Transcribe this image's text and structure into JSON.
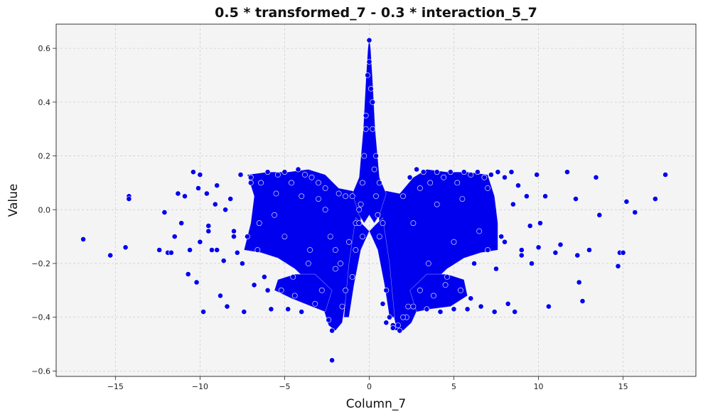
{
  "chart_data": {
    "type": "scatter",
    "title": "0.5 * transformed_7 - 0.3 * interaction_5_7",
    "xlabel": "Column_7",
    "ylabel": "Value",
    "xlim": [
      -18.5,
      19.3
    ],
    "ylim": [
      -0.62,
      0.69
    ],
    "xticks": [
      -15,
      -10,
      -5,
      0,
      5,
      10,
      15
    ],
    "yticks": [
      -0.6,
      -0.4,
      -0.2,
      0.0,
      0.2,
      0.4,
      0.6
    ],
    "xtick_labels": [
      "−15",
      "−10",
      "−5",
      "0",
      "5",
      "10",
      "15"
    ],
    "ytick_labels": [
      "−0.6",
      "−0.4",
      "−0.2",
      "0.0",
      "0.2",
      "0.4",
      "0.6"
    ],
    "grid": true,
    "background_color": "#f4f4f4",
    "marker_color": "#0000ee",
    "marker_edge_color": "#ffffff",
    "series": [
      {
        "x": [
          -16.9,
          -15.3,
          -14.4,
          -14.2,
          -14.2,
          -12.4,
          -12.1,
          -11.9,
          -11.7,
          -11.5,
          -11.3,
          -11.1,
          -10.9,
          -10.7,
          -10.6,
          -10.4,
          -10.2,
          -10.1,
          -10.0,
          -9.8,
          -9.6,
          -9.5,
          -9.3,
          -9.1,
          -9.0,
          -8.8,
          -8.6,
          -8.4,
          -8.2,
          -8.0,
          -7.8,
          -7.6,
          -7.4,
          -7.2,
          -7.0,
          -6.8,
          -6.6,
          -6.4,
          -6.2,
          -6.0,
          -5.8,
          -5.6,
          -5.4,
          -5.2,
          -5.0,
          -4.8,
          -4.6,
          -4.4,
          -4.2,
          -4.0,
          -3.8,
          -3.6,
          -3.4,
          -3.2,
          -3.0,
          -2.8,
          -2.6,
          -2.4,
          -2.2,
          -2.0,
          -1.8,
          -1.6,
          -1.4,
          -1.2,
          -1.0,
          -0.8,
          -0.6,
          -0.4,
          -0.2,
          0.0,
          0.2,
          0.4,
          0.6,
          0.8,
          1.0,
          1.2,
          1.4,
          1.6,
          1.8,
          2.0,
          2.2,
          2.4,
          2.6,
          2.8,
          3.0,
          3.2,
          3.4,
          3.6,
          3.8,
          4.0,
          4.2,
          4.4,
          4.6,
          4.8,
          5.0,
          5.2,
          5.4,
          5.6,
          5.8,
          6.0,
          6.2,
          6.4,
          6.6,
          6.8,
          7.0,
          7.2,
          7.4,
          7.6,
          7.8,
          8.0,
          8.2,
          8.4,
          8.6,
          8.8,
          9.0,
          9.3,
          9.6,
          9.9,
          10.1,
          10.4,
          10.6,
          11.0,
          11.3,
          11.7,
          12.2,
          12.3,
          12.4,
          12.6,
          13.0,
          13.4,
          13.6,
          14.7,
          14.8,
          15.0,
          15.2,
          15.7,
          16.9,
          17.5,
          -2.2,
          0.0,
          -0.1,
          0.1,
          -0.2,
          0.2,
          -0.3,
          0.3,
          -0.4,
          0.4,
          -0.5,
          0.5,
          -0.6,
          0.6,
          -0.8,
          0.8,
          -1.0,
          1.0,
          -1.4,
          1.4,
          -1.7,
          1.7,
          -2.0,
          2.0,
          -2.3,
          2.3,
          -2.6,
          2.6,
          -3.0,
          3.0,
          -3.5,
          3.5,
          -4.0,
          4.0,
          -4.5,
          4.5,
          -5.0,
          5.0,
          -5.5,
          5.5,
          -6.0,
          6.0,
          -6.5,
          6.5,
          -7.0,
          7.0,
          -7.5,
          7.5,
          -8.0,
          8.0,
          -8.5,
          8.5,
          -9.0,
          9.0,
          -9.5,
          9.5,
          -10.0,
          10.0
        ],
        "y": [
          -0.11,
          -0.17,
          -0.14,
          0.05,
          0.04,
          -0.15,
          -0.01,
          -0.16,
          -0.16,
          -0.1,
          0.06,
          -0.05,
          0.05,
          -0.24,
          -0.15,
          0.14,
          -0.27,
          0.08,
          0.13,
          -0.38,
          0.06,
          -0.06,
          -0.15,
          0.02,
          0.09,
          -0.32,
          -0.19,
          -0.36,
          0.04,
          -0.08,
          -0.16,
          0.13,
          -0.38,
          -0.1,
          0.12,
          -0.28,
          -0.15,
          0.1,
          -0.25,
          0.14,
          -0.37,
          -0.02,
          0.13,
          -0.3,
          0.14,
          -0.37,
          0.1,
          -0.32,
          0.15,
          -0.38,
          0.13,
          -0.2,
          0.12,
          -0.35,
          0.04,
          -0.3,
          0.08,
          -0.41,
          -0.45,
          -0.22,
          0.06,
          -0.36,
          0.05,
          -0.12,
          0.05,
          -0.05,
          0.0,
          -0.1,
          0.3,
          0.63,
          0.4,
          0.2,
          0.1,
          -0.05,
          -0.3,
          -0.4,
          -0.43,
          -0.44,
          -0.45,
          0.05,
          -0.4,
          0.12,
          -0.36,
          0.15,
          -0.3,
          0.14,
          -0.37,
          0.1,
          -0.32,
          0.14,
          -0.38,
          0.12,
          -0.25,
          0.14,
          -0.37,
          0.1,
          -0.3,
          0.14,
          -0.37,
          0.13,
          -0.2,
          0.14,
          -0.36,
          0.12,
          -0.15,
          0.13,
          -0.38,
          0.14,
          -0.1,
          0.12,
          -0.35,
          0.14,
          -0.38,
          0.09,
          -0.15,
          0.05,
          -0.2,
          0.13,
          -0.05,
          0.05,
          -0.36,
          -0.16,
          -0.13,
          0.14,
          0.04,
          -0.17,
          -0.27,
          -0.34,
          -0.15,
          0.12,
          -0.02,
          -0.21,
          -0.16,
          -0.16,
          0.03,
          -0.01,
          0.04,
          0.13,
          -0.56,
          0.55,
          0.5,
          0.45,
          0.35,
          0.3,
          0.2,
          0.15,
          0.1,
          0.05,
          0.02,
          -0.02,
          -0.05,
          -0.1,
          -0.15,
          -0.35,
          -0.25,
          -0.42,
          -0.3,
          -0.44,
          -0.2,
          -0.43,
          -0.15,
          -0.4,
          -0.1,
          -0.36,
          0.0,
          -0.05,
          0.1,
          0.08,
          -0.15,
          -0.2,
          0.05,
          0.02,
          -0.25,
          -0.28,
          -0.1,
          -0.12,
          0.06,
          0.04,
          -0.3,
          -0.33,
          -0.05,
          -0.08,
          0.1,
          0.08,
          -0.2,
          -0.22,
          -0.1,
          -0.12,
          0.0,
          0.02,
          -0.15,
          -0.17,
          -0.08,
          -0.06,
          -0.12,
          -0.14
        ]
      }
    ]
  }
}
